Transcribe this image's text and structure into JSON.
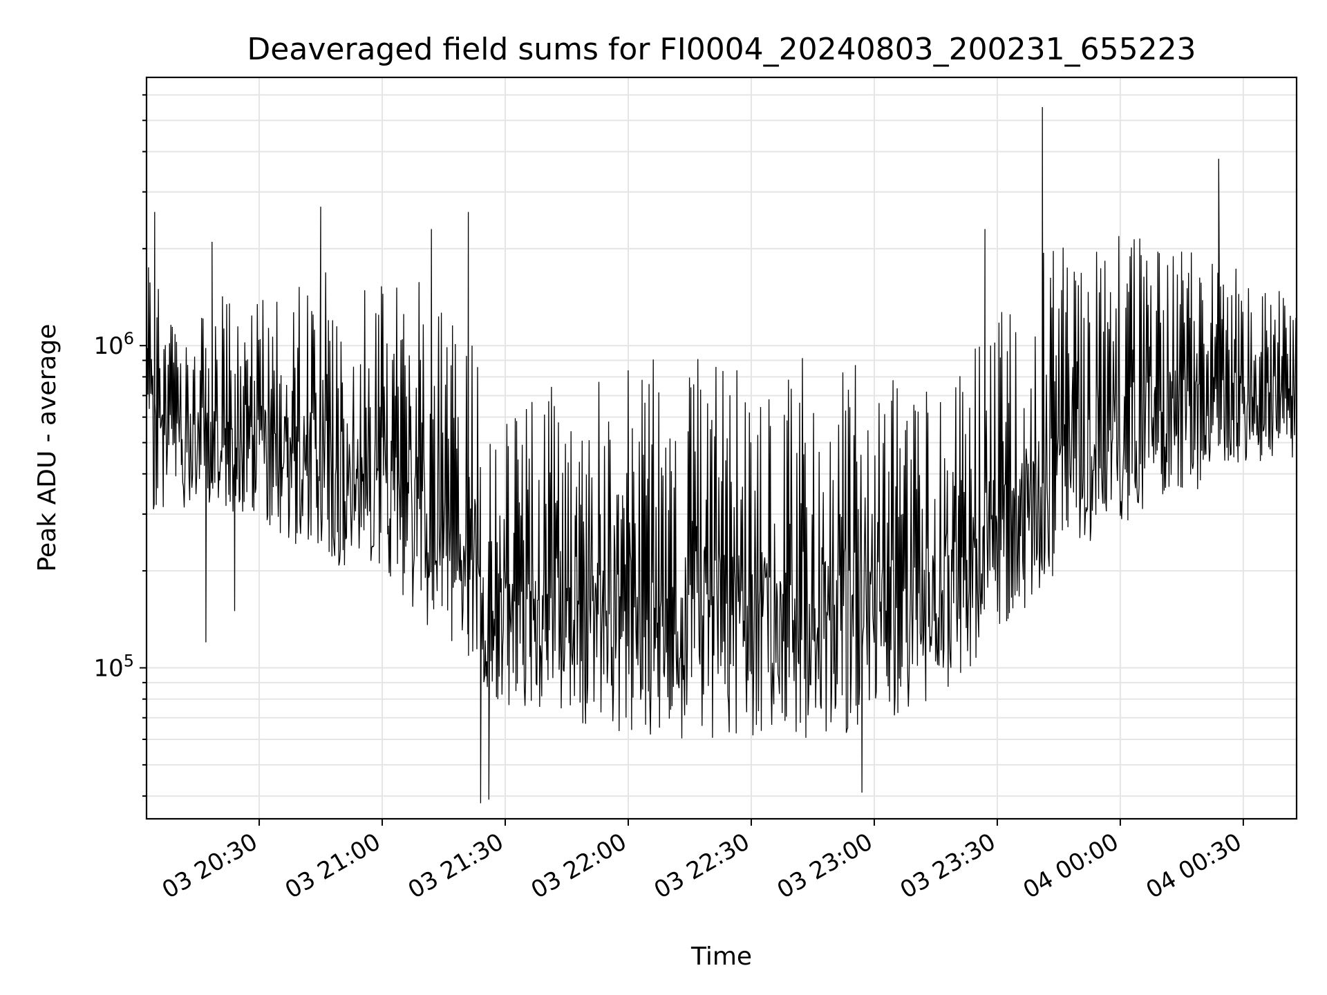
{
  "chart_data": {
    "type": "line",
    "title": "Deaveraged field sums for FI0004_20240803_200231_655223",
    "xlabel": "Time",
    "ylabel": "Peak ADU - average",
    "yscale": "log",
    "grid": true,
    "line_color": "#000000",
    "x_ticks": [
      "03 20:30",
      "03 21:00",
      "03 21:30",
      "03 22:00",
      "03 22:30",
      "03 23:00",
      "03 23:30",
      "04 00:00",
      "04 00:30"
    ],
    "y_ticks": [
      {
        "base": "10",
        "exp": "5",
        "value": 100000
      },
      {
        "base": "10",
        "exp": "6",
        "value": 1000000
      }
    ],
    "xlim": [
      "2024-08-03 20:02:31",
      "2024-08-04 00:43:00"
    ],
    "ylim": [
      34000,
      6800000
    ],
    "series": [
      {
        "x": [
          "2024-08-03 20:02:31",
          "2024-08-03 20:15:00",
          "2024-08-03 20:30:00",
          "2024-08-03 20:45:00",
          "2024-08-03 21:00:00",
          "2024-08-03 21:10:00",
          "2024-08-03 21:18:00",
          "2024-08-03 21:22:00",
          "2024-08-03 21:24:00",
          "2024-08-03 21:30:00",
          "2024-08-03 21:45:00",
          "2024-08-03 22:00:00",
          "2024-08-03 22:15:00",
          "2024-08-03 22:30:00",
          "2024-08-03 22:45:00",
          "2024-08-03 23:00:00",
          "2024-08-03 23:15:00",
          "2024-08-03 23:30:00",
          "2024-08-03 23:45:00",
          "2024-08-04 00:00:00",
          "2024-08-04 00:15:00",
          "2024-08-04 00:30:00",
          "2024-08-04 00:43:00"
        ],
        "low": [
          300000,
          320000,
          290000,
          210000,
          200000,
          140000,
          110000,
          100000,
          80000,
          75000,
          68000,
          62000,
          60000,
          61000,
          60000,
          65000,
          80000,
          120000,
          200000,
          280000,
          340000,
          400000,
          450000
        ],
        "high": [
          1700000,
          1400000,
          1500000,
          1800000,
          1600000,
          1700000,
          1500000,
          2500000,
          500000,
          620000,
          800000,
          880000,
          950000,
          900000,
          950000,
          880000,
          700000,
          1500000,
          2400000,
          2200000,
          2100000,
          1700000,
          1400000
        ],
        "spikes": [
          {
            "x": "2024-08-03 20:03:00",
            "y": 1750000
          },
          {
            "x": "2024-08-03 20:04:30",
            "y": 2600000
          },
          {
            "x": "2024-08-03 20:17:00",
            "y": 120000
          },
          {
            "x": "2024-08-03 20:18:30",
            "y": 2100000
          },
          {
            "x": "2024-08-03 20:24:00",
            "y": 150000
          },
          {
            "x": "2024-08-03 20:45:00",
            "y": 2700000
          },
          {
            "x": "2024-08-03 21:12:00",
            "y": 2300000
          },
          {
            "x": "2024-08-03 21:21:00",
            "y": 2600000
          },
          {
            "x": "2024-08-03 21:24:00",
            "y": 38000
          },
          {
            "x": "2024-08-03 21:26:00",
            "y": 39000
          },
          {
            "x": "2024-08-03 22:57:00",
            "y": 41000
          },
          {
            "x": "2024-08-03 23:27:00",
            "y": 2300000
          },
          {
            "x": "2024-08-03 23:41:00",
            "y": 5500000
          },
          {
            "x": "2024-08-04 00:24:00",
            "y": 3800000
          }
        ]
      }
    ]
  }
}
